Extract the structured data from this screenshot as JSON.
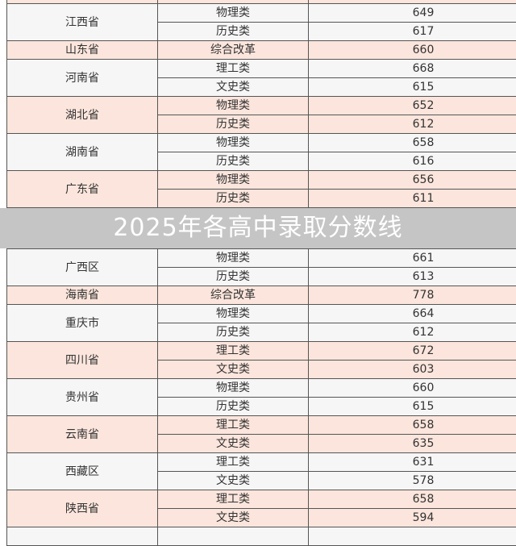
{
  "title": "2025年各高中录取分数线",
  "colors": {
    "pink": "#fbe5dc",
    "gray": "#f6f6f6"
  },
  "rows": [
    {
      "province": "",
      "items": [
        {
          "type": "",
          "score": ""
        }
      ],
      "shade": "pink"
    },
    {
      "province": "江西省",
      "items": [
        {
          "type": "物理类",
          "score": "649"
        },
        {
          "type": "历史类",
          "score": "617"
        }
      ],
      "shade": "gray"
    },
    {
      "province": "山东省",
      "items": [
        {
          "type": "综合改革",
          "score": "660"
        }
      ],
      "shade": "pink"
    },
    {
      "province": "河南省",
      "items": [
        {
          "type": "理工类",
          "score": "668"
        },
        {
          "type": "文史类",
          "score": "615"
        }
      ],
      "shade": "gray"
    },
    {
      "province": "湖北省",
      "items": [
        {
          "type": "物理类",
          "score": "652"
        },
        {
          "type": "历史类",
          "score": "612"
        }
      ],
      "shade": "pink"
    },
    {
      "province": "湖南省",
      "items": [
        {
          "type": "物理类",
          "score": "658"
        },
        {
          "type": "历史类",
          "score": "616"
        }
      ],
      "shade": "gray"
    },
    {
      "province": "广东省",
      "items": [
        {
          "type": "物理类",
          "score": "656"
        },
        {
          "type": "历史类",
          "score": "611"
        }
      ],
      "shade": "pink"
    },
    {
      "province": "广西区",
      "items": [
        {
          "type": "物理类",
          "score": "661"
        },
        {
          "type": "历史类",
          "score": "613"
        }
      ],
      "shade": "gray"
    },
    {
      "province": "海南省",
      "items": [
        {
          "type": "综合改革",
          "score": "778"
        }
      ],
      "shade": "pink"
    },
    {
      "province": "重庆市",
      "items": [
        {
          "type": "物理类",
          "score": "664"
        },
        {
          "type": "历史类",
          "score": "612"
        }
      ],
      "shade": "gray"
    },
    {
      "province": "四川省",
      "items": [
        {
          "type": "理工类",
          "score": "672"
        },
        {
          "type": "文史类",
          "score": "603"
        }
      ],
      "shade": "pink"
    },
    {
      "province": "贵州省",
      "items": [
        {
          "type": "物理类",
          "score": "660"
        },
        {
          "type": "历史类",
          "score": "615"
        }
      ],
      "shade": "gray"
    },
    {
      "province": "云南省",
      "items": [
        {
          "type": "理工类",
          "score": "658"
        },
        {
          "type": "文史类",
          "score": "635"
        }
      ],
      "shade": "pink"
    },
    {
      "province": "西藏区",
      "items": [
        {
          "type": "理工类",
          "score": "631"
        },
        {
          "type": "文史类",
          "score": "578"
        }
      ],
      "shade": "gray"
    },
    {
      "province": "陕西省",
      "items": [
        {
          "type": "理工类",
          "score": "658"
        },
        {
          "type": "文史类",
          "score": "594"
        }
      ],
      "shade": "pink"
    },
    {
      "province": "",
      "items": [
        {
          "type": "",
          "score": ""
        }
      ],
      "shade": "gray"
    }
  ]
}
